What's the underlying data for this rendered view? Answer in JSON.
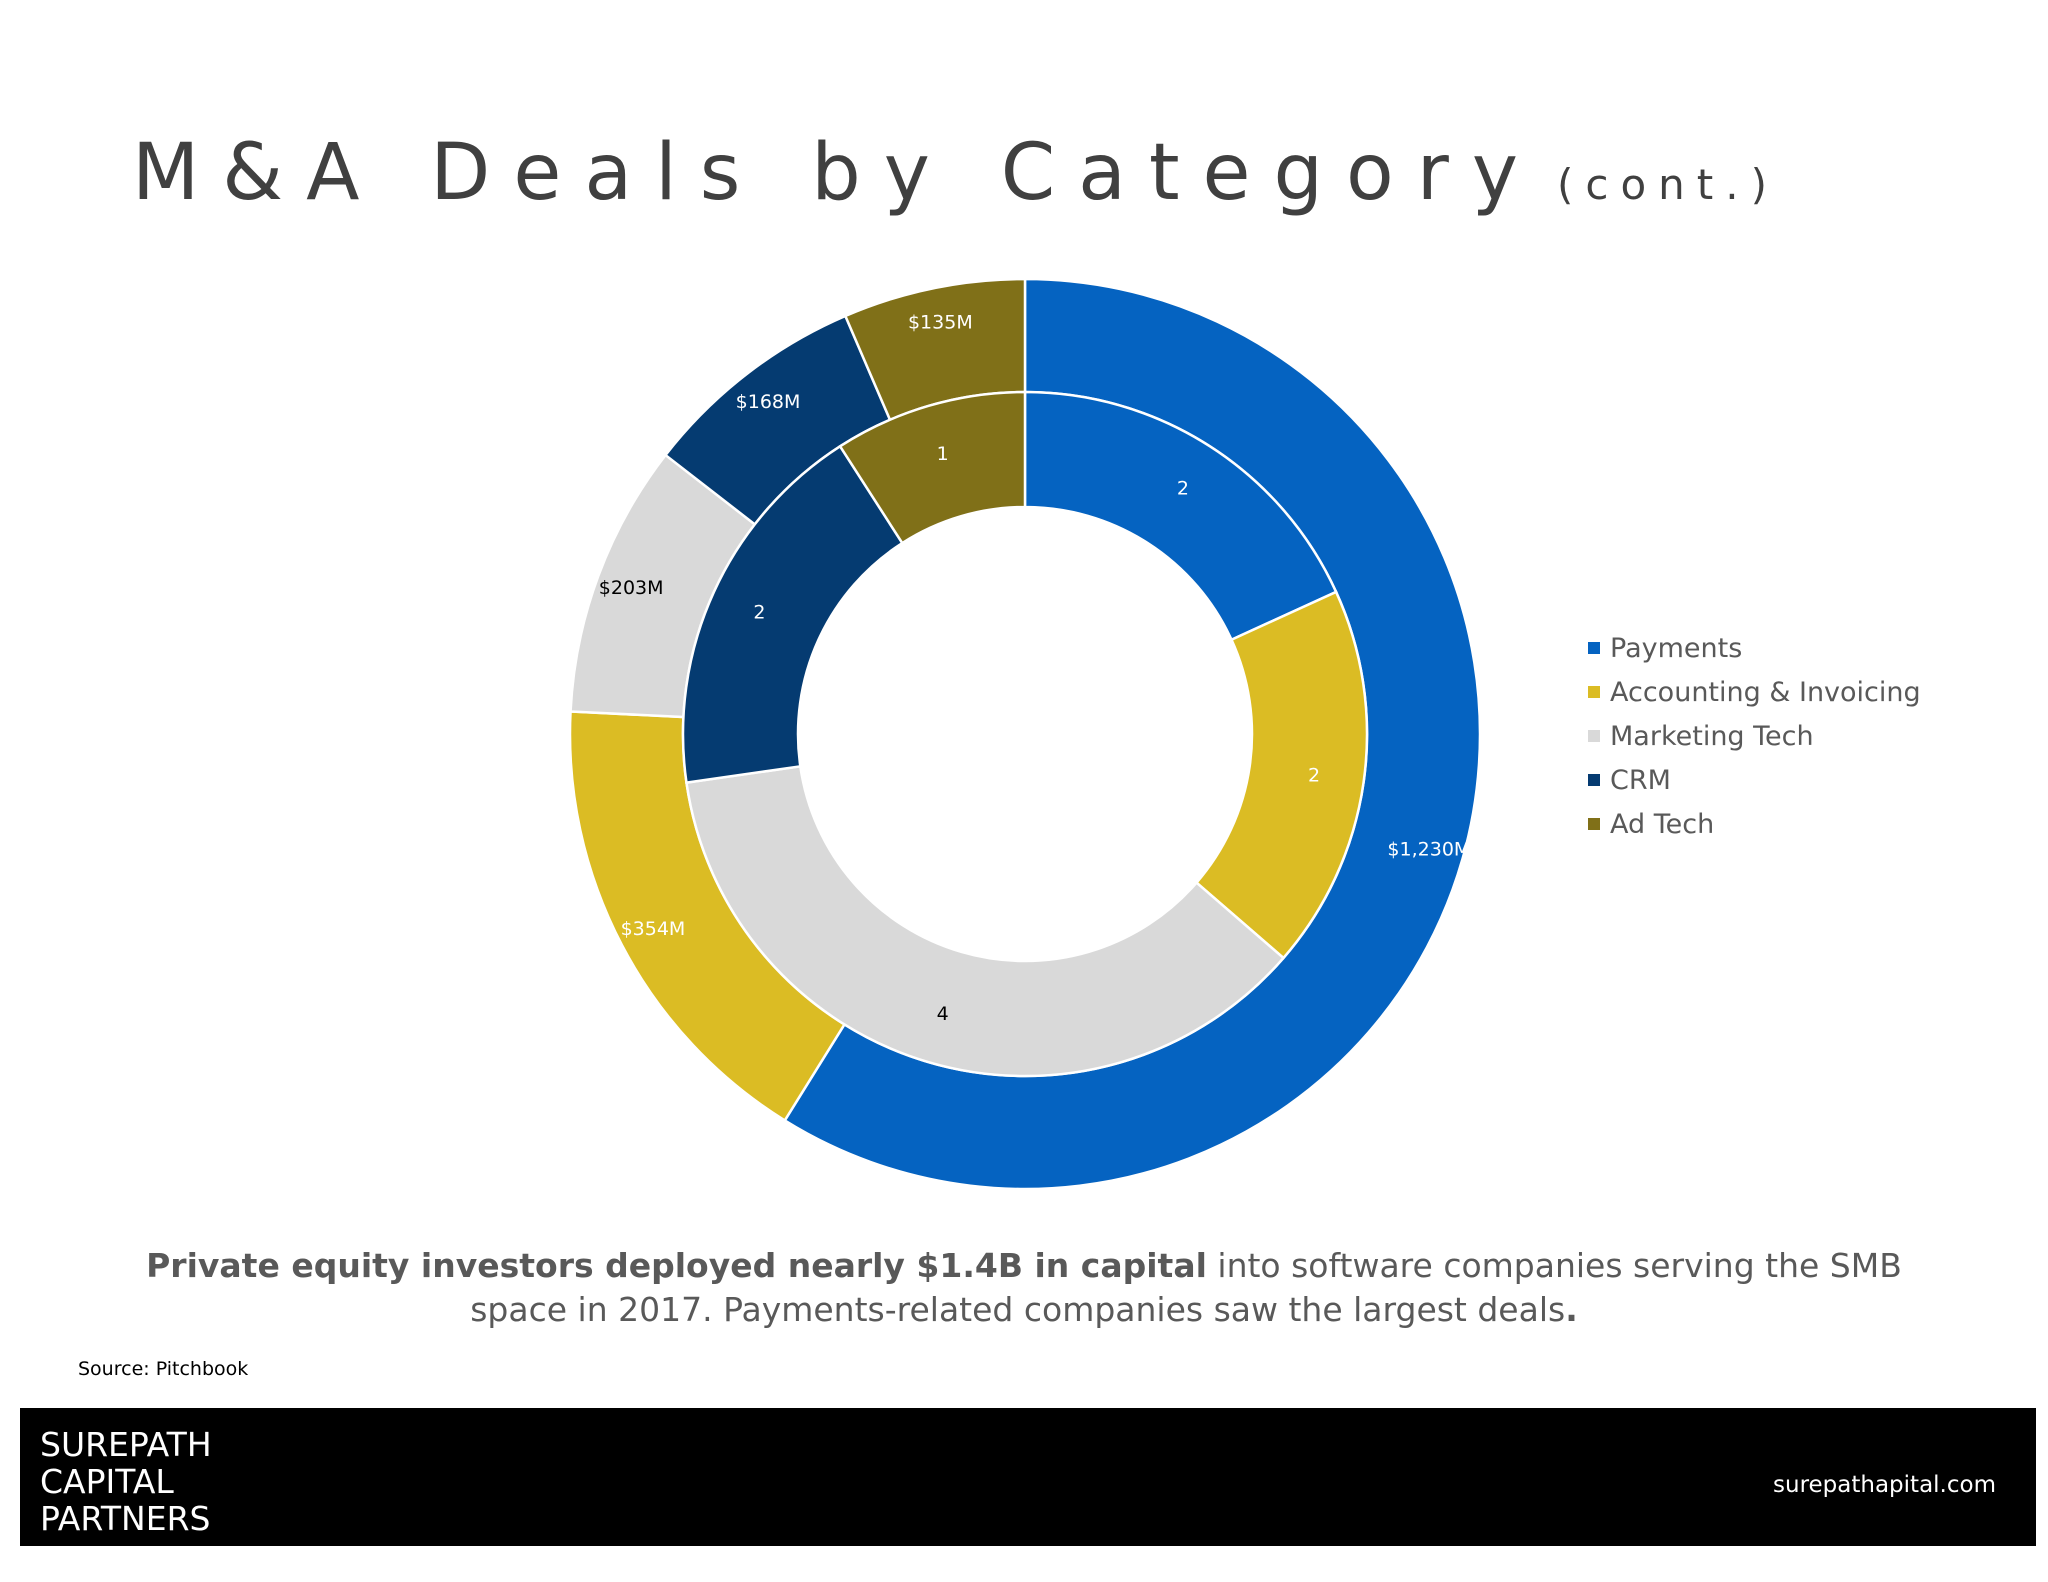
{
  "title": {
    "main": "M&A Deals by Category",
    "suffix": "(cont.)"
  },
  "colors": {
    "payments": "#0563C1",
    "accounting": "#DBBC24",
    "marketing": "#D9D9D9",
    "crm": "#053B71",
    "adtech": "#807018"
  },
  "chart_data": {
    "type": "doughnut",
    "categories": [
      "Payments",
      "Accounting & Invoicing",
      "Marketing Tech",
      "CRM",
      "Ad Tech"
    ],
    "series": [
      {
        "values": [
          2,
          2,
          4,
          2,
          1
        ],
        "labels": [
          "2",
          "2",
          "4",
          "2",
          "1"
        ]
      },
      {
        "values": [
          1230,
          354,
          203,
          168,
          135
        ],
        "labels": [
          "$1,230M",
          "$354M",
          "$203M",
          "$168M",
          "$135M"
        ]
      }
    ],
    "legend_position": "right"
  },
  "caption": {
    "bold": "Private equity investors deployed nearly $1.4B in capital",
    "normal": " into software companies serving the SMB space in 2017. Payments-related companies saw the largest deals",
    "end": "."
  },
  "source": "Source: Pitchbook",
  "footer": {
    "logo_lines": [
      "SUREPATH",
      "CAPITAL",
      "PARTNERS"
    ],
    "website": "surepathapital.com"
  }
}
